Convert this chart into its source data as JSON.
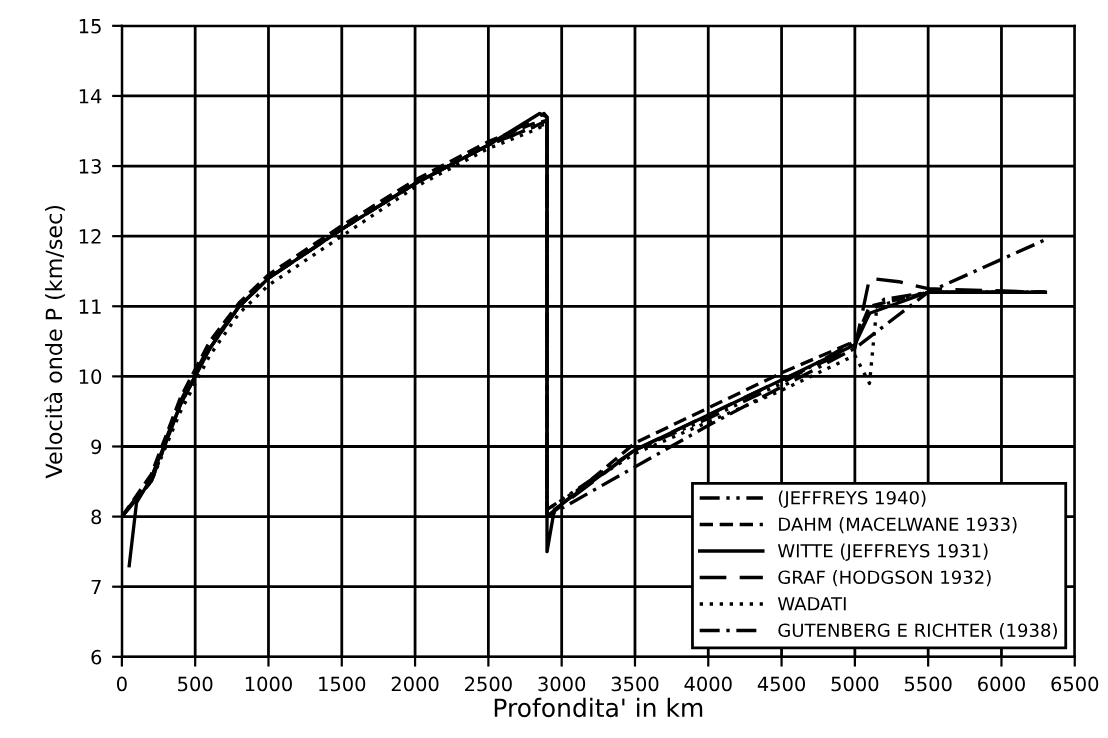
{
  "chart_data": {
    "type": "line",
    "xlabel": "Profondita' in km",
    "ylabel": "Velocità onde P (km/sec)",
    "xlim": [
      0,
      6500
    ],
    "xticks": [
      0,
      500,
      1000,
      1500,
      2000,
      2500,
      3000,
      3500,
      4000,
      4500,
      5000,
      5500,
      6000,
      6500
    ],
    "ylim": [
      6,
      15
    ],
    "yticks": [
      6,
      7,
      8,
      9,
      10,
      11,
      12,
      13,
      14,
      15
    ],
    "grid": true,
    "legend": "bottom right",
    "series": [
      {
        "name": "(JEFFREYS 1940)",
        "color": "#000000",
        "line_style": "dashdotdot",
        "x": [
          0,
          200,
          400,
          600,
          800,
          1000,
          1500,
          2000,
          2500,
          2800,
          2900,
          2900,
          3500,
          4000,
          4500,
          5000,
          5100,
          5200,
          5500,
          6300
        ],
        "values": [
          8.0,
          8.5,
          9.6,
          10.4,
          11.0,
          11.4,
          12.1,
          12.75,
          13.3,
          13.55,
          13.6,
          8.1,
          8.95,
          9.4,
          9.9,
          10.5,
          10.9,
          11.1,
          11.2,
          11.2
        ]
      },
      {
        "name": "DAHM (MACELWANE 1933)",
        "color": "#000000",
        "line_style": "dashed",
        "x": [
          0,
          200,
          400,
          600,
          800,
          1000,
          1500,
          2000,
          2500,
          2800,
          2900,
          2900,
          3500,
          4000,
          4500,
          5000,
          5100,
          5500,
          6300
        ],
        "values": [
          8.0,
          8.6,
          9.7,
          10.5,
          11.05,
          11.45,
          12.15,
          12.8,
          13.35,
          13.6,
          13.65,
          8.0,
          9.05,
          9.55,
          10.05,
          10.5,
          11.0,
          11.2,
          11.2
        ]
      },
      {
        "name": "WITTE (JEFFREYS 1931)",
        "color": "#000000",
        "line_style": "solid",
        "x": [
          50,
          100,
          200,
          400,
          600,
          800,
          1000,
          1500,
          2000,
          2500,
          2850,
          2900,
          2900,
          2950,
          3500,
          4000,
          4500,
          5000,
          5100,
          5500,
          6300
        ],
        "values": [
          7.3,
          8.2,
          8.55,
          9.6,
          10.4,
          11.0,
          11.4,
          12.1,
          12.75,
          13.3,
          13.75,
          13.7,
          7.5,
          8.1,
          8.95,
          9.45,
          9.95,
          10.45,
          10.9,
          11.2,
          11.2
        ]
      },
      {
        "name": "GRAF (HODGSON 1932)",
        "color": "#000000",
        "line_style": "longdash",
        "x": [
          0,
          200,
          400,
          600,
          800,
          1000,
          1500,
          2000,
          2500,
          2880,
          2900,
          2900,
          3500,
          4000,
          4500,
          5000,
          5100,
          5300,
          5500,
          6300
        ],
        "values": [
          8.0,
          8.55,
          9.65,
          10.45,
          11.0,
          11.4,
          12.1,
          12.75,
          13.3,
          13.75,
          13.7,
          8.0,
          8.95,
          9.45,
          9.95,
          10.4,
          11.4,
          11.35,
          11.25,
          11.2
        ]
      },
      {
        "name": "WADATI",
        "color": "#000000",
        "line_style": "dotted",
        "x": [
          0,
          200,
          400,
          600,
          800,
          1000,
          1500,
          2000,
          2500,
          2800,
          2900,
          2900,
          3500,
          4000,
          4500,
          5000,
          5050,
          5100,
          5150,
          5500,
          6300
        ],
        "values": [
          8.0,
          8.5,
          9.5,
          10.3,
          10.9,
          11.3,
          12.0,
          12.7,
          13.25,
          13.5,
          13.6,
          8.1,
          8.9,
          9.35,
          9.8,
          10.3,
          10.1,
          9.9,
          11.0,
          11.2,
          11.2
        ]
      },
      {
        "name": "GUTENBERG E RICHTER (1938)",
        "color": "#000000",
        "line_style": "dashdot",
        "x": [
          0,
          200,
          400,
          600,
          800,
          1000,
          1500,
          2000,
          2500,
          2800,
          2900,
          2900,
          4000,
          5000,
          5500,
          6300
        ],
        "values": [
          8.0,
          8.5,
          9.6,
          10.4,
          11.0,
          11.4,
          12.1,
          12.75,
          13.3,
          13.55,
          13.65,
          8.0,
          9.3,
          10.4,
          11.2,
          11.95
        ]
      }
    ]
  }
}
